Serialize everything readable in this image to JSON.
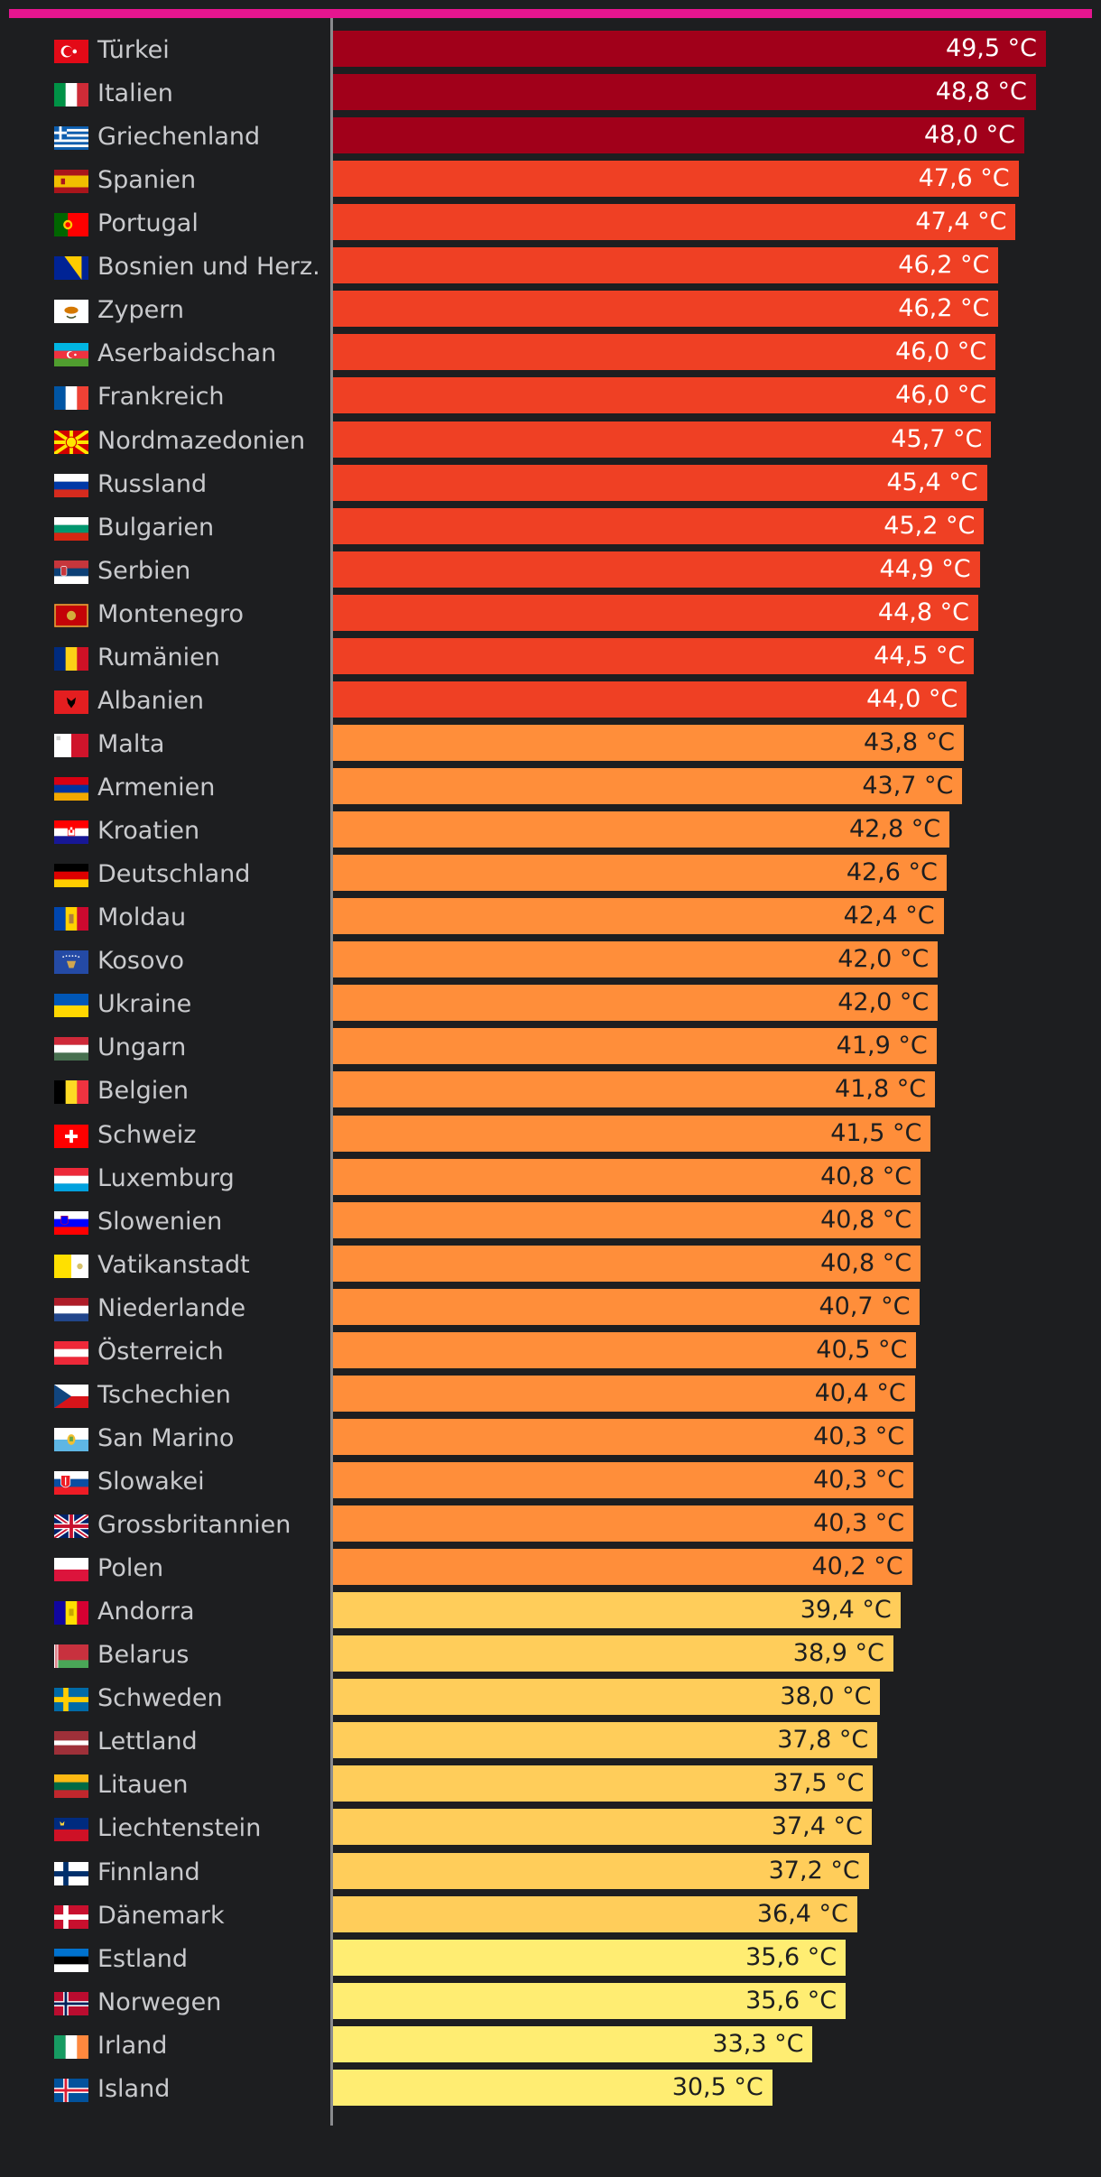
{
  "chart_data": {
    "type": "bar",
    "orientation": "horizontal",
    "unit": "°C",
    "xlim": [
      0,
      49.5
    ],
    "colors": {
      "top": "#a1001a",
      "red": "#ef4024",
      "orange": "#ff8e3a",
      "amber": "#ffcd5a",
      "yellow": "#ffed72",
      "label_light": "#ffffff",
      "label_dark": "#1d1e20",
      "accent": "#e5158f"
    },
    "rows": [
      {
        "country": "Türkei",
        "value": 49.5,
        "label": "49,5 °C",
        "flag": "tr",
        "tier": "top"
      },
      {
        "country": "Italien",
        "value": 48.8,
        "label": "48,8 °C",
        "flag": "it",
        "tier": "top"
      },
      {
        "country": "Griechenland",
        "value": 48.0,
        "label": "48,0 °C",
        "flag": "gr",
        "tier": "top"
      },
      {
        "country": "Spanien",
        "value": 47.6,
        "label": "47,6 °C",
        "flag": "es",
        "tier": "red"
      },
      {
        "country": "Portugal",
        "value": 47.4,
        "label": "47,4 °C",
        "flag": "pt",
        "tier": "red"
      },
      {
        "country": "Bosnien und Herz.",
        "value": 46.2,
        "label": "46,2 °C",
        "flag": "ba",
        "tier": "red"
      },
      {
        "country": "Zypern",
        "value": 46.2,
        "label": "46,2 °C",
        "flag": "cy",
        "tier": "red"
      },
      {
        "country": "Aserbaidschan",
        "value": 46.0,
        "label": "46,0 °C",
        "flag": "az",
        "tier": "red"
      },
      {
        "country": "Frankreich",
        "value": 46.0,
        "label": "46,0 °C",
        "flag": "fr",
        "tier": "red"
      },
      {
        "country": "Nordmazedonien",
        "value": 45.7,
        "label": "45,7 °C",
        "flag": "mk",
        "tier": "red"
      },
      {
        "country": "Russland",
        "value": 45.4,
        "label": "45,4 °C",
        "flag": "ru",
        "tier": "red"
      },
      {
        "country": "Bulgarien",
        "value": 45.2,
        "label": "45,2 °C",
        "flag": "bg",
        "tier": "red"
      },
      {
        "country": "Serbien",
        "value": 44.9,
        "label": "44,9 °C",
        "flag": "rs",
        "tier": "red"
      },
      {
        "country": "Montenegro",
        "value": 44.8,
        "label": "44,8 °C",
        "flag": "me",
        "tier": "red"
      },
      {
        "country": "Rumänien",
        "value": 44.5,
        "label": "44,5 °C",
        "flag": "ro",
        "tier": "red"
      },
      {
        "country": "Albanien",
        "value": 44.0,
        "label": "44,0 °C",
        "flag": "al",
        "tier": "red"
      },
      {
        "country": "Malta",
        "value": 43.8,
        "label": "43,8 °C",
        "flag": "mt",
        "tier": "orange"
      },
      {
        "country": "Armenien",
        "value": 43.7,
        "label": "43,7 °C",
        "flag": "am",
        "tier": "orange"
      },
      {
        "country": "Kroatien",
        "value": 42.8,
        "label": "42,8 °C",
        "flag": "hr",
        "tier": "orange"
      },
      {
        "country": "Deutschland",
        "value": 42.6,
        "label": "42,6 °C",
        "flag": "de",
        "tier": "orange"
      },
      {
        "country": "Moldau",
        "value": 42.4,
        "label": "42,4 °C",
        "flag": "md",
        "tier": "orange"
      },
      {
        "country": "Kosovo",
        "value": 42.0,
        "label": "42,0 °C",
        "flag": "xk",
        "tier": "orange"
      },
      {
        "country": "Ukraine",
        "value": 42.0,
        "label": "42,0 °C",
        "flag": "ua",
        "tier": "orange"
      },
      {
        "country": "Ungarn",
        "value": 41.9,
        "label": "41,9 °C",
        "flag": "hu",
        "tier": "orange"
      },
      {
        "country": "Belgien",
        "value": 41.8,
        "label": "41,8 °C",
        "flag": "be",
        "tier": "orange"
      },
      {
        "country": "Schweiz",
        "value": 41.5,
        "label": "41,5 °C",
        "flag": "ch",
        "tier": "orange"
      },
      {
        "country": "Luxemburg",
        "value": 40.8,
        "label": "40,8 °C",
        "flag": "lu",
        "tier": "orange"
      },
      {
        "country": "Slowenien",
        "value": 40.8,
        "label": "40,8 °C",
        "flag": "si",
        "tier": "orange"
      },
      {
        "country": "Vatikanstadt",
        "value": 40.8,
        "label": "40,8 °C",
        "flag": "va",
        "tier": "orange"
      },
      {
        "country": "Niederlande",
        "value": 40.7,
        "label": "40,7 °C",
        "flag": "nl",
        "tier": "orange"
      },
      {
        "country": "Österreich",
        "value": 40.5,
        "label": "40,5 °C",
        "flag": "at",
        "tier": "orange"
      },
      {
        "country": "Tschechien",
        "value": 40.4,
        "label": "40,4 °C",
        "flag": "cz",
        "tier": "orange"
      },
      {
        "country": "San Marino",
        "value": 40.3,
        "label": "40,3 °C",
        "flag": "sm",
        "tier": "orange"
      },
      {
        "country": "Slowakei",
        "value": 40.3,
        "label": "40,3 °C",
        "flag": "sk",
        "tier": "orange"
      },
      {
        "country": "Grossbritannien",
        "value": 40.3,
        "label": "40,3 °C",
        "flag": "gb",
        "tier": "orange"
      },
      {
        "country": "Polen",
        "value": 40.2,
        "label": "40,2 °C",
        "flag": "pl",
        "tier": "orange"
      },
      {
        "country": "Andorra",
        "value": 39.4,
        "label": "39,4 °C",
        "flag": "ad",
        "tier": "amber"
      },
      {
        "country": "Belarus",
        "value": 38.9,
        "label": "38,9 °C",
        "flag": "by",
        "tier": "amber"
      },
      {
        "country": "Schweden",
        "value": 38.0,
        "label": "38,0 °C",
        "flag": "se",
        "tier": "amber"
      },
      {
        "country": "Lettland",
        "value": 37.8,
        "label": "37,8 °C",
        "flag": "lv",
        "tier": "amber"
      },
      {
        "country": "Litauen",
        "value": 37.5,
        "label": "37,5 °C",
        "flag": "lt",
        "tier": "amber"
      },
      {
        "country": "Liechtenstein",
        "value": 37.4,
        "label": "37,4 °C",
        "flag": "li",
        "tier": "amber"
      },
      {
        "country": "Finnland",
        "value": 37.2,
        "label": "37,2 °C",
        "flag": "fi",
        "tier": "amber"
      },
      {
        "country": "Dänemark",
        "value": 36.4,
        "label": "36,4 °C",
        "flag": "dk",
        "tier": "amber"
      },
      {
        "country": "Estland",
        "value": 35.6,
        "label": "35,6 °C",
        "flag": "ee",
        "tier": "yellow"
      },
      {
        "country": "Norwegen",
        "value": 35.6,
        "label": "35,6 °C",
        "flag": "no",
        "tier": "yellow"
      },
      {
        "country": "Irland",
        "value": 33.3,
        "label": "33,3 °C",
        "flag": "ie",
        "tier": "yellow"
      },
      {
        "country": "Island",
        "value": 30.5,
        "label": "30,5 °C",
        "flag": "is",
        "tier": "yellow"
      }
    ]
  }
}
